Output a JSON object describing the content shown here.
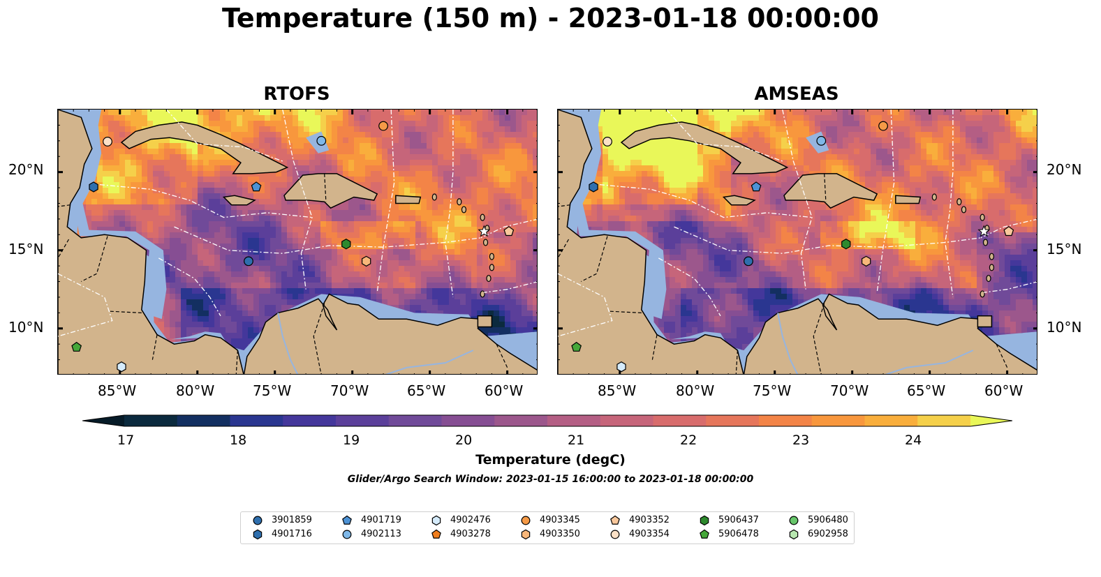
{
  "title": "Temperature (150 m) - 2023-01-18 00:00:00",
  "panels": [
    {
      "title": "RTOFS"
    },
    {
      "title": "AMSEAS"
    }
  ],
  "axes": {
    "x_ticks": [
      "85°W",
      "80°W",
      "75°W",
      "70°W",
      "65°W",
      "60°W"
    ],
    "y_ticks": [
      "20°N",
      "15°N",
      "10°N"
    ]
  },
  "colorbar": {
    "title": "Temperature (degC)",
    "tick_labels": [
      "17",
      "18",
      "19",
      "20",
      "21",
      "22",
      "23",
      "24"
    ],
    "colors": [
      "#0b2a3e",
      "#132f61",
      "#2a3690",
      "#44379b",
      "#5b3f9a",
      "#704a99",
      "#864e93",
      "#9c578c",
      "#b45e84",
      "#c6657a",
      "#d86c6c",
      "#e6765b",
      "#f38447",
      "#f8973d",
      "#f9ae3c",
      "#f5d04a"
    ],
    "under_color": "#061b28",
    "over_color": "#e9f759"
  },
  "search_window": "Glider/Argo Search Window: 2023-01-15 16:00:00 to 2023-01-18 00:00:00",
  "legend": [
    {
      "id": "3901859",
      "marker": "circle",
      "color": "#2f6fae"
    },
    {
      "id": "4901716",
      "marker": "hexagon",
      "color": "#2f6fae"
    },
    {
      "id": "4901719",
      "marker": "pentagon",
      "color": "#4d92d5"
    },
    {
      "id": "4902113",
      "marker": "circle",
      "color": "#7fb8e8"
    },
    {
      "id": "4902476",
      "marker": "hexagon",
      "color": "#d5ebfb"
    },
    {
      "id": "4903278",
      "marker": "pentagon",
      "color": "#f07e1e"
    },
    {
      "id": "4903345",
      "marker": "circle",
      "color": "#f59a47"
    },
    {
      "id": "4903350",
      "marker": "hexagon",
      "color": "#f8b77a"
    },
    {
      "id": "4903352",
      "marker": "pentagon",
      "color": "#f9c89c"
    },
    {
      "id": "4903354",
      "marker": "circle",
      "color": "#fbe0c6"
    },
    {
      "id": "5906437",
      "marker": "hexagon",
      "color": "#2e8a2e"
    },
    {
      "id": "5906478",
      "marker": "pentagon",
      "color": "#46a83a"
    },
    {
      "id": "5906480",
      "marker": "circle",
      "color": "#67c66b"
    },
    {
      "id": "6902958",
      "marker": "hexagon",
      "color": "#b8e7b0"
    }
  ],
  "floats": [
    {
      "id": "4903354",
      "lon": -85.8,
      "lat": 21.95,
      "marker": "circle",
      "color": "#fbe0c6"
    },
    {
      "id": "4901716",
      "lon": -86.7,
      "lat": 19.05,
      "marker": "hexagon",
      "color": "#2f6fae"
    },
    {
      "id": "4902113",
      "lon": -72.0,
      "lat": 22.0,
      "marker": "circle",
      "color": "#7fb8e8"
    },
    {
      "id": "4903345",
      "lon": -68.0,
      "lat": 22.95,
      "marker": "circle",
      "color": "#f59a47"
    },
    {
      "id": "4901719",
      "lon": -76.2,
      "lat": 19.05,
      "marker": "pentagon",
      "color": "#4d92d5"
    },
    {
      "id": "3901859",
      "lon": -76.7,
      "lat": 14.3,
      "marker": "circle",
      "color": "#2f6fae"
    },
    {
      "id": "5906437",
      "lon": -70.4,
      "lat": 15.4,
      "marker": "hexagon",
      "color": "#2e8a2e"
    },
    {
      "id": "4903350",
      "lon": -69.1,
      "lat": 14.3,
      "marker": "hexagon",
      "color": "#f8b77a"
    },
    {
      "id": "4903352",
      "lon": -59.9,
      "lat": 16.2,
      "marker": "pentagon",
      "color": "#f9c89c"
    },
    {
      "id": "5906478",
      "lon": -87.8,
      "lat": 8.8,
      "marker": "pentagon",
      "color": "#46a83a"
    },
    {
      "id": "4902476",
      "lon": -84.9,
      "lat": 7.55,
      "marker": "hexagon",
      "color": "#d5ebfb"
    }
  ],
  "extent": {
    "lon": [
      -89.0,
      -58.0
    ],
    "lat": [
      7.0,
      24.0
    ]
  }
}
